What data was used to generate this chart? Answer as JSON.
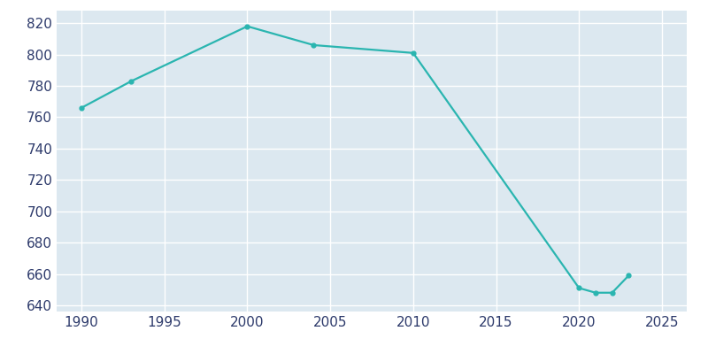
{
  "years": [
    1990,
    1993,
    2000,
    2004,
    2010,
    2020,
    2021,
    2022,
    2023
  ],
  "population": [
    766,
    783,
    818,
    806,
    801,
    651,
    648,
    648,
    659
  ],
  "line_color": "#2ab5b0",
  "marker_style": "o",
  "marker_size": 3.5,
  "line_width": 1.6,
  "fig_bg_color": "#ffffff",
  "axes_bg_color": "#dce8f0",
  "grid_color": "#ffffff",
  "tick_color": "#2d3a6b",
  "xlim": [
    1988.5,
    2026.5
  ],
  "ylim": [
    636,
    828
  ],
  "xticks": [
    1990,
    1995,
    2000,
    2005,
    2010,
    2015,
    2020,
    2025
  ],
  "yticks": [
    640,
    660,
    680,
    700,
    720,
    740,
    760,
    780,
    800,
    820
  ],
  "tick_label_fontsize": 11,
  "tick_label_color": "#2d3a6b"
}
